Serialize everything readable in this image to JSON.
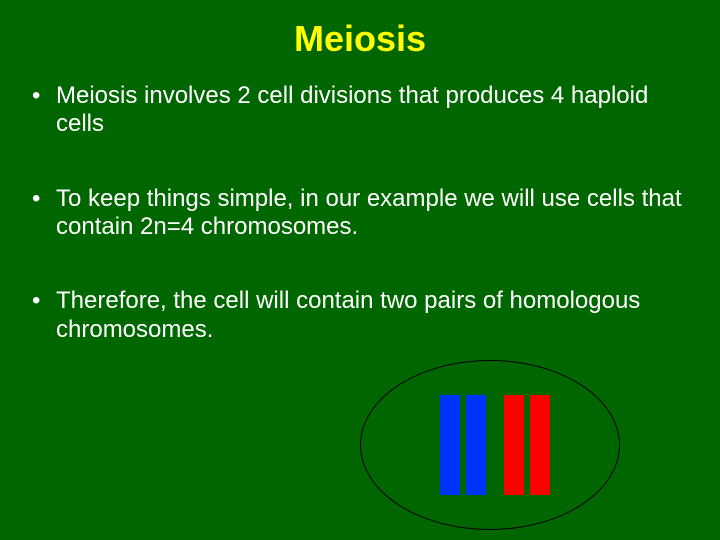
{
  "title": "Meiosis",
  "bullets": [
    "Meiosis involves 2 cell divisions that produces 4 haploid cells",
    "To keep things simple, in our example we will use cells that contain 2n=4 chromosomes.",
    "Therefore, the cell will contain two pairs of homologous chromosomes."
  ],
  "diagram": {
    "type": "infographic",
    "cell_outline_color": "#000000",
    "cell_outline_width": 1,
    "background_color": "#006600",
    "chromosomes": [
      {
        "color": "#0033ff",
        "pair": 1
      },
      {
        "color": "#0033ff",
        "pair": 1
      },
      {
        "color": "#ff0000",
        "pair": 2
      },
      {
        "color": "#ff0000",
        "pair": 2
      }
    ],
    "chromosome_width": 20,
    "chromosome_height": 100
  },
  "colors": {
    "slide_background": "#006600",
    "title_color": "#ffff00",
    "body_text_color": "#ffffff"
  },
  "typography": {
    "title_fontsize": 36,
    "title_weight": "bold",
    "body_fontsize": 24,
    "font_family": "Arial"
  }
}
